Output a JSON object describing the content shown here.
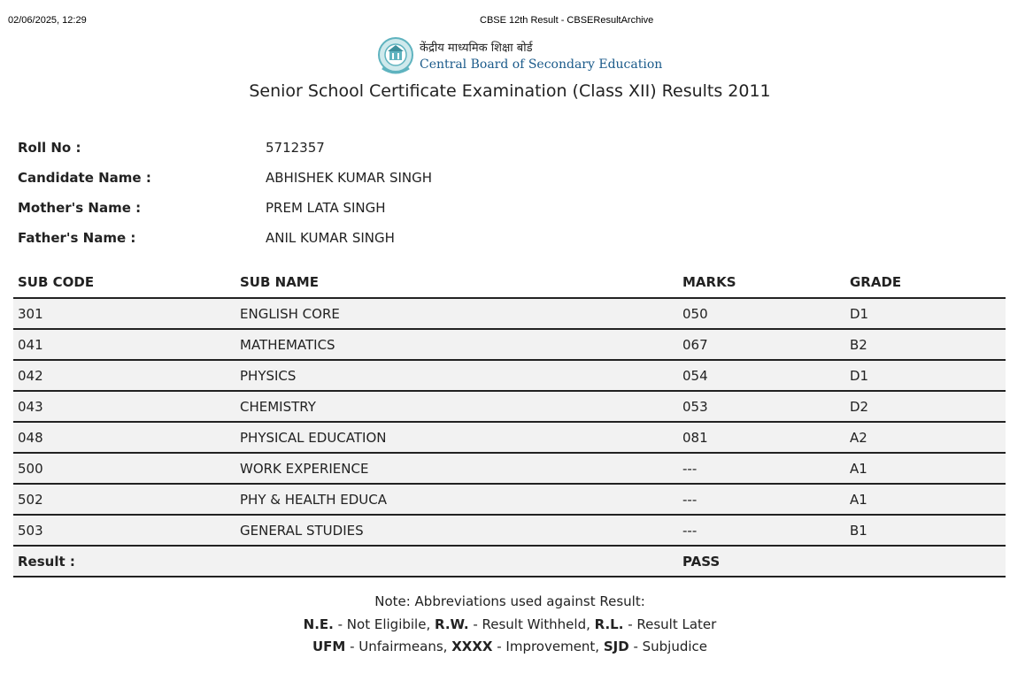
{
  "print_header": {
    "datetime": "02/06/2025, 12:29",
    "page_title": "CBSE 12th Result - CBSEResultArchive"
  },
  "logo": {
    "hindi": "केंद्रीय माध्यमिक शिक्षा बोर्ड",
    "english": "Central Board of Secondary Education"
  },
  "title": "Senior School Certificate Examination (Class XII) Results 2011",
  "candidate": [
    {
      "label": "Roll No :",
      "value": "5712357"
    },
    {
      "label": "Candidate Name :",
      "value": "ABHISHEK KUMAR SINGH"
    },
    {
      "label": "Mother's Name :",
      "value": "PREM LATA SINGH"
    },
    {
      "label": "Father's Name :",
      "value": "ANIL KUMAR SINGH"
    }
  ],
  "table": {
    "headers": [
      "SUB CODE",
      "SUB NAME",
      "MARKS",
      "GRADE"
    ],
    "rows": [
      [
        "301",
        "ENGLISH CORE",
        "050",
        "D1"
      ],
      [
        "041",
        "MATHEMATICS",
        "067",
        "B2"
      ],
      [
        "042",
        "PHYSICS",
        "054",
        "D1"
      ],
      [
        "043",
        "CHEMISTRY",
        "053",
        "D2"
      ],
      [
        "048",
        "PHYSICAL EDUCATION",
        "081",
        "A2"
      ],
      [
        "500",
        "WORK EXPERIENCE",
        "---",
        "A1"
      ],
      [
        "502",
        "PHY & HEALTH EDUCA",
        "---",
        "A1"
      ],
      [
        "503",
        "GENERAL STUDIES",
        "---",
        "B1"
      ]
    ],
    "result_label": "Result :",
    "result_value": "PASS"
  },
  "note": {
    "heading": "Note: Abbreviations used against Result:",
    "line1": [
      {
        "abbr": "N.E.",
        "text": " - Not Eligibile, "
      },
      {
        "abbr": "R.W.",
        "text": " - Result Withheld, "
      },
      {
        "abbr": "R.L.",
        "text": " - Result Later"
      }
    ],
    "line2": [
      {
        "abbr": "UFM",
        "text": " - Unfairmeans, "
      },
      {
        "abbr": "XXXX",
        "text": " - Improvement, "
      },
      {
        "abbr": "SJD",
        "text": " - Subjudice"
      }
    ]
  }
}
